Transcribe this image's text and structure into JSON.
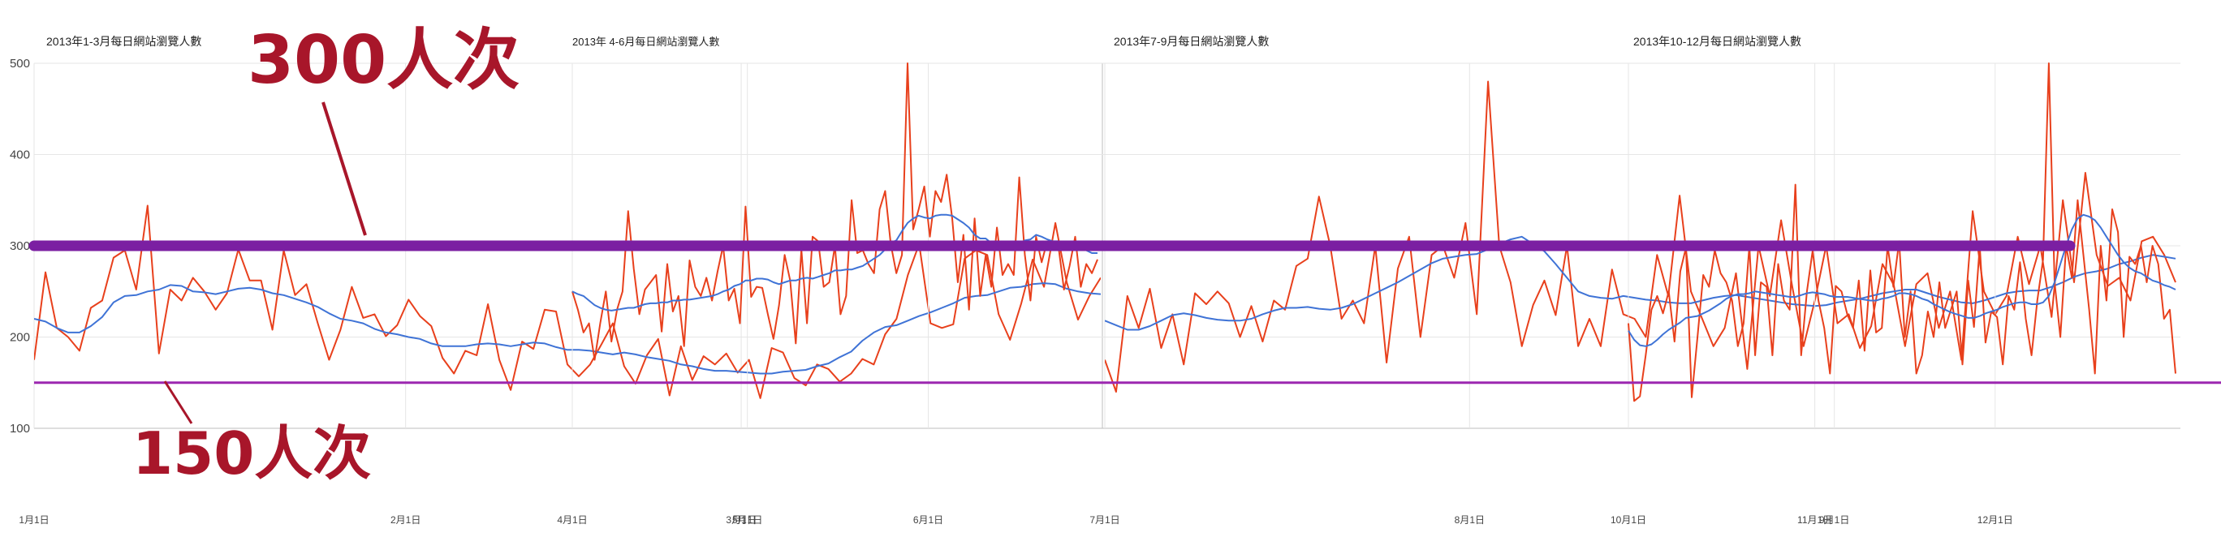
{
  "colors": {
    "daily": "#e8401c",
    "average": "#3f73d6",
    "ref300": "#7b1fa2",
    "ref150": "#9c27b0",
    "callout": "#a8162a",
    "grid": "#d9d9d9",
    "axis_text": "#444444"
  },
  "callouts": {
    "high": "300人次",
    "low": "150人次"
  },
  "chart_data": {
    "type": "line",
    "panels": [
      {
        "title": "2013年1-3月每日網站瀏覽人數",
        "x_range": [
          "2013-01-01",
          "2013-03-31"
        ],
        "x_ticks": [
          {
            "date": "2013-01-01",
            "label": "1月1日"
          },
          {
            "date": "2013-02-01",
            "label": "2月1日"
          },
          {
            "date": "2013-03-01",
            "label": "3月1日"
          }
        ],
        "daily": [
          175,
          271,
          210,
          200,
          185,
          232,
          240,
          287,
          295,
          252,
          344,
          182,
          252,
          240,
          265,
          250,
          230,
          248,
          296,
          262,
          262,
          208,
          295,
          246,
          258,
          215,
          175,
          208,
          255,
          221,
          225,
          201,
          213,
          241,
          223,
          212,
          177,
          160,
          185,
          180,
          236,
          175,
          142,
          195,
          187,
          230,
          228,
          170,
          157,
          170,
          192,
          215,
          168,
          149,
          180,
          198,
          136,
          190,
          153,
          179,
          170,
          182,
          161,
          175,
          133,
          188,
          183,
          155,
          147,
          170,
          165,
          151,
          160,
          176,
          170,
          203,
          220,
          268,
          302,
          215,
          210,
          214,
          286,
          295,
          290,
          225,
          197,
          237,
          285,
          255,
          325,
          260,
          219,
          245,
          265
        ],
        "average": [
          220,
          217,
          210,
          205,
          205,
          212,
          222,
          238,
          245,
          246,
          250,
          252,
          257,
          256,
          250,
          249,
          247,
          250,
          253,
          254,
          252,
          248,
          246,
          242,
          238,
          233,
          226,
          220,
          218,
          215,
          209,
          205,
          203,
          200,
          198,
          193,
          190,
          190,
          190,
          192,
          193,
          192,
          190,
          192,
          194,
          193,
          189,
          186,
          186,
          185,
          183,
          181,
          183,
          181,
          178,
          176,
          174,
          170,
          168,
          165,
          163,
          163,
          162,
          161,
          160,
          160,
          162,
          163,
          164,
          168,
          171,
          178,
          184,
          196,
          205,
          211,
          213,
          218,
          223,
          227,
          232,
          237,
          243,
          245,
          246,
          250,
          254,
          255,
          258,
          259,
          258,
          253,
          250,
          248,
          247
        ]
      },
      {
        "title": "2013年 4-6月每日網站瀏覽人數",
        "x_range": [
          "2013-04-01",
          "2013-06-30"
        ],
        "x_ticks": [
          {
            "date": "2013-04-01",
            "label": "4月1日"
          },
          {
            "date": "2013-05-01",
            "label": "5月1日"
          },
          {
            "date": "2013-06-01",
            "label": "6月1日"
          }
        ],
        "daily": [
          250,
          230,
          205,
          215,
          175,
          215,
          250,
          195,
          230,
          250,
          338,
          275,
          225,
          252,
          260,
          268,
          206,
          280,
          228,
          245,
          190,
          284,
          255,
          245,
          265,
          240,
          272,
          300,
          240,
          253,
          215,
          343,
          244,
          255,
          254,
          225,
          198,
          235,
          290,
          262,
          193,
          296,
          215,
          310,
          305,
          255,
          260,
          300,
          225,
          245,
          350,
          292,
          295,
          280,
          270,
          340,
          360,
          302,
          270,
          290,
          500,
          318,
          340,
          365,
          310,
          360,
          348,
          378,
          330,
          260,
          312,
          230,
          330,
          245,
          290,
          255,
          320,
          268,
          280,
          268,
          375,
          290,
          240,
          310,
          282,
          305,
          304,
          300,
          252,
          278,
          310,
          255,
          280,
          270,
          285
        ],
        "average": [
          250,
          247,
          245,
          240,
          235,
          232,
          230,
          229,
          230,
          231,
          232,
          232,
          234,
          236,
          237,
          237,
          238,
          238,
          240,
          240,
          241,
          241,
          242,
          243,
          244,
          245,
          247,
          250,
          252,
          256,
          258,
          262,
          262,
          264,
          264,
          263,
          260,
          258,
          260,
          262,
          262,
          264,
          265,
          264,
          266,
          268,
          270,
          273,
          273,
          274,
          274,
          276,
          278,
          282,
          286,
          290,
          296,
          303,
          306,
          316,
          325,
          330,
          333,
          331,
          330,
          333,
          334,
          334,
          333,
          329,
          325,
          320,
          312,
          308,
          308,
          303,
          304,
          301,
          300,
          300,
          302,
          306,
          307,
          312,
          310,
          307,
          305,
          305,
          303,
          300,
          297,
          297,
          295,
          292,
          292
        ]
      },
      {
        "title": "2013年7-9月每日網站瀏覽人數",
        "x_range": [
          "2013-07-01",
          "2013-09-30"
        ],
        "x_ticks": [
          {
            "date": "2013-07-01",
            "label": "7月1日"
          },
          {
            "date": "2013-08-01",
            "label": "8月1日"
          },
          {
            "date": "2013-09-01",
            "label": "9月1日"
          }
        ],
        "daily": [
          175,
          140,
          245,
          210,
          253,
          188,
          225,
          170,
          248,
          236,
          250,
          237,
          200,
          234,
          195,
          240,
          230,
          278,
          286,
          354,
          300,
          220,
          240,
          215,
          300,
          172,
          275,
          310,
          200,
          290,
          300,
          265,
          325,
          225,
          480,
          300,
          260,
          190,
          235,
          262,
          224,
          300,
          190,
          220,
          190,
          274,
          225,
          220,
          200,
          290,
          245,
          355,
          250,
          220,
          190,
          210,
          270,
          165,
          300,
          245,
          328,
          255,
          190,
          240,
          300,
          215,
          225,
          188,
          212,
          280,
          257,
          190,
          258,
          270,
          210,
          250,
          175,
          338,
          250,
          225,
          245,
          310,
          258,
          300,
          222,
          350,
          260,
          380,
          290,
          256,
          265,
          240,
          305,
          310,
          290,
          260
        ],
        "average": [
          218,
          213,
          208,
          208,
          212,
          218,
          224,
          226,
          224,
          221,
          219,
          218,
          218,
          220,
          225,
          229,
          232,
          232,
          233,
          231,
          230,
          232,
          236,
          242,
          248,
          254,
          260,
          267,
          274,
          281,
          286,
          288,
          290,
          291,
          296,
          302,
          307,
          310,
          302,
          294,
          280,
          265,
          250,
          245,
          243,
          242,
          245,
          243,
          241,
          240,
          238,
          237,
          237,
          240,
          243,
          245,
          246,
          244,
          242,
          240,
          238,
          236,
          235,
          234,
          235,
          238,
          240,
          242,
          245,
          248,
          250,
          252,
          252,
          248,
          244,
          241,
          238,
          237,
          240,
          244,
          248,
          250,
          251,
          251,
          255,
          260,
          266,
          270,
          272,
          275,
          280,
          283,
          287,
          290,
          288,
          286
        ]
      },
      {
        "title": "2013年10-12月每日網站瀏覽人數",
        "x_range": [
          "2013-10-01",
          "2013-12-31"
        ],
        "x_ticks": [
          {
            "date": "2013-10-01",
            "label": "10月1日"
          },
          {
            "date": "2013-11-01",
            "label": "11月1日"
          },
          {
            "date": "2013-12-01",
            "label": "12月1日"
          }
        ],
        "daily": [
          215,
          130,
          135,
          180,
          230,
          245,
          226,
          250,
          195,
          272,
          298,
          134,
          200,
          268,
          255,
          295,
          270,
          260,
          240,
          190,
          215,
          300,
          180,
          260,
          255,
          180,
          280,
          240,
          230,
          367,
          180,
          250,
          295,
          240,
          210,
          160,
          256,
          250,
          225,
          210,
          262,
          185,
          273,
          205,
          210,
          300,
          255,
          305,
          200,
          250,
          160,
          180,
          228,
          200,
          260,
          210,
          230,
          250,
          170,
          262,
          211,
          300,
          194,
          228,
          222,
          170,
          245,
          230,
          282,
          220,
          180,
          240,
          285,
          500,
          260,
          200,
          300,
          265,
          350,
          290,
          230,
          160,
          300,
          240,
          340,
          315,
          200,
          288,
          280,
          300,
          260,
          300,
          280,
          220,
          230,
          160
        ],
        "average": [
          207,
          197,
          191,
          190,
          192,
          197,
          203,
          208,
          212,
          216,
          221,
          222,
          223,
          226,
          229,
          233,
          237,
          242,
          245,
          247,
          247,
          248,
          250,
          249,
          248,
          247,
          246,
          245,
          244,
          244,
          246,
          248,
          249,
          248,
          247,
          245,
          244,
          244,
          244,
          243,
          242,
          241,
          240,
          240,
          242,
          243,
          245,
          248,
          248,
          247,
          245,
          242,
          240,
          236,
          233,
          230,
          227,
          225,
          223,
          221,
          221,
          223,
          226,
          228,
          230,
          233,
          235,
          237,
          238,
          238,
          236,
          236,
          238,
          245,
          260,
          280,
          300,
          318,
          330,
          334,
          332,
          328,
          320,
          310,
          300,
          290,
          282,
          276,
          272,
          270,
          266,
          262,
          260,
          257,
          255,
          252
        ]
      }
    ],
    "y_ticks": [
      100,
      200,
      300,
      400,
      500
    ],
    "ylim": [
      100,
      500
    ],
    "reference_lines": [
      300,
      150
    ],
    "grid": true
  }
}
